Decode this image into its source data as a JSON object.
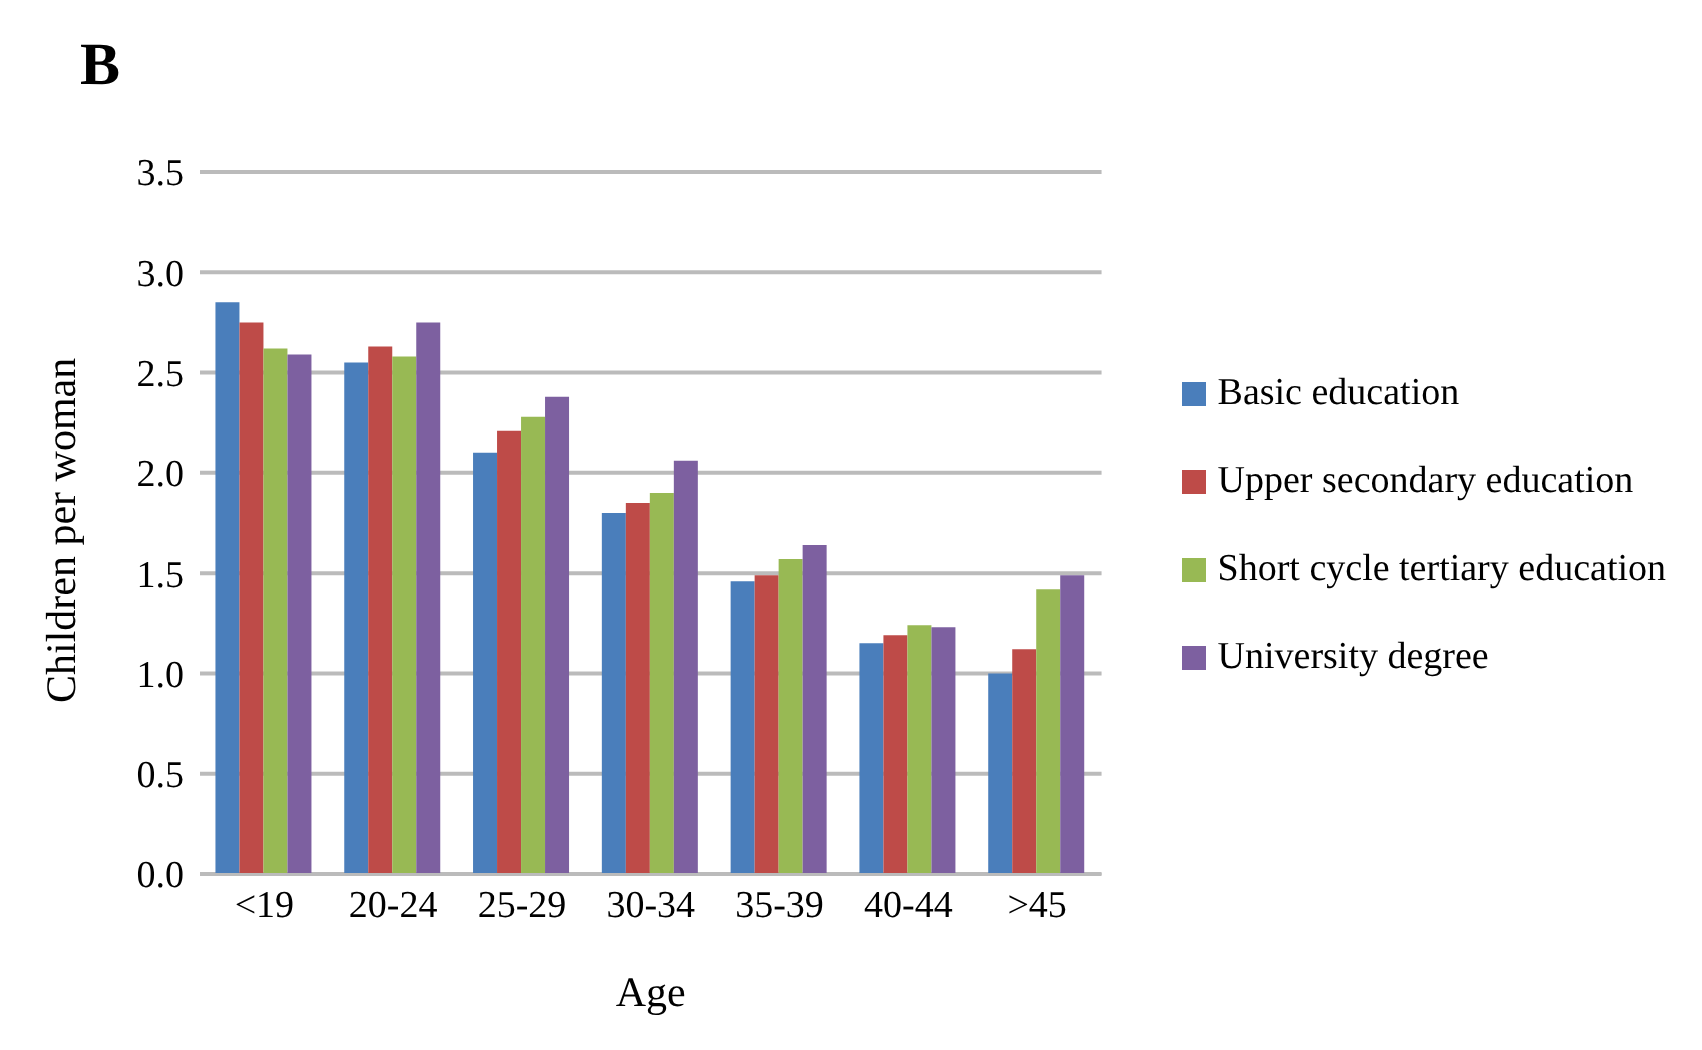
{
  "chart_data": {
    "type": "bar",
    "title": "B",
    "xlabel": "Age",
    "ylabel": "Children per woman",
    "categories": [
      "<19",
      "20-24",
      "25-29",
      "30-34",
      "35-39",
      "40-44",
      ">45"
    ],
    "series": [
      {
        "name": "Basic education",
        "color": "#4a7ebb",
        "values": [
          2.85,
          2.55,
          2.1,
          1.8,
          1.46,
          1.15,
          1.0
        ]
      },
      {
        "name": "Upper secondary education",
        "color": "#be4b48",
        "values": [
          2.75,
          2.63,
          2.21,
          1.85,
          1.49,
          1.19,
          1.12
        ]
      },
      {
        "name": "Short cycle tertiary education",
        "color": "#98b954",
        "values": [
          2.62,
          2.58,
          2.28,
          1.9,
          1.57,
          1.24,
          1.42
        ]
      },
      {
        "name": "University degree",
        "color": "#7d60a0",
        "values": [
          2.59,
          2.75,
          2.38,
          2.06,
          1.64,
          1.23,
          1.49
        ]
      }
    ],
    "ylim": [
      0,
      3.5
    ],
    "yticks": [
      {
        "value": 0,
        "label": "0.0"
      },
      {
        "value": 0.5,
        "label": "0.5"
      },
      {
        "value": 1,
        "label": "1.0"
      },
      {
        "value": 1.5,
        "label": "1.5"
      },
      {
        "value": 2,
        "label": "2.0"
      },
      {
        "value": 2.5,
        "label": "2.5"
      },
      {
        "value": 3,
        "label": "3.0"
      },
      {
        "value": 3.5,
        "label": "3.5"
      }
    ],
    "grid": "y",
    "legend": "right"
  }
}
